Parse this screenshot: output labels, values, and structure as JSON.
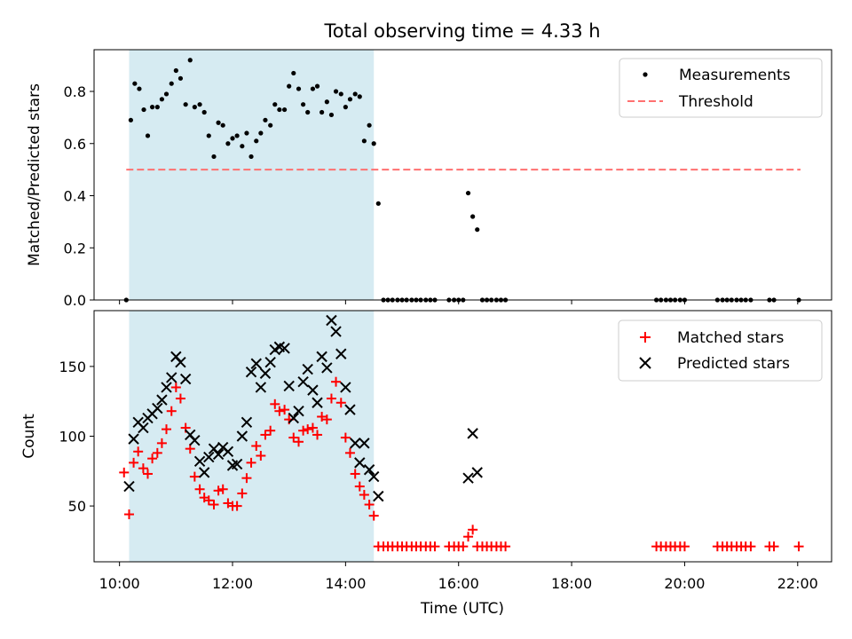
{
  "title": "Total observing time = 4.33 h",
  "x_axis": {
    "label": "Time (UTC)",
    "ticks": [
      "10:00",
      "12:00",
      "14:00",
      "16:00",
      "18:00",
      "20:00",
      "22:00"
    ],
    "tick_values": [
      10,
      12,
      14,
      16,
      18,
      20,
      22
    ],
    "range": [
      9.55,
      22.6
    ]
  },
  "colors": {
    "shade": "#add8e6",
    "threshold": "#ff7070",
    "measurements": "#000000",
    "matched": "#ff0000",
    "predicted": "#000000"
  },
  "chart_data": [
    {
      "type": "scatter",
      "ylabel": "Matched/Predicted stars",
      "ylim": [
        0,
        0.96
      ],
      "yticks": [
        "0.0",
        "0.2",
        "0.4",
        "0.6",
        "0.8"
      ],
      "ytick_values": [
        0,
        0.2,
        0.4,
        0.6,
        0.8
      ],
      "shaded_span": [
        10.17,
        14.5
      ],
      "legend": {
        "position": "upper right",
        "entries": [
          "Measurements",
          "Threshold"
        ]
      },
      "threshold": {
        "name": "Threshold",
        "y": 0.5,
        "x_range": [
          10.12,
          22.05
        ]
      },
      "series": [
        {
          "name": "Measurements",
          "points": [
            [
              10.12,
              0.0
            ],
            [
              10.2,
              0.69
            ],
            [
              10.27,
              0.83
            ],
            [
              10.35,
              0.81
            ],
            [
              10.43,
              0.73
            ],
            [
              10.5,
              0.63
            ],
            [
              10.58,
              0.74
            ],
            [
              10.67,
              0.74
            ],
            [
              10.75,
              0.77
            ],
            [
              10.83,
              0.79
            ],
            [
              10.92,
              0.83
            ],
            [
              11.0,
              0.88
            ],
            [
              11.08,
              0.85
            ],
            [
              11.17,
              0.75
            ],
            [
              11.25,
              0.92
            ],
            [
              11.33,
              0.74
            ],
            [
              11.42,
              0.75
            ],
            [
              11.5,
              0.72
            ],
            [
              11.58,
              0.63
            ],
            [
              11.67,
              0.55
            ],
            [
              11.75,
              0.68
            ],
            [
              11.83,
              0.67
            ],
            [
              11.92,
              0.6
            ],
            [
              12.0,
              0.62
            ],
            [
              12.08,
              0.63
            ],
            [
              12.17,
              0.59
            ],
            [
              12.25,
              0.64
            ],
            [
              12.33,
              0.55
            ],
            [
              12.42,
              0.61
            ],
            [
              12.5,
              0.64
            ],
            [
              12.58,
              0.69
            ],
            [
              12.67,
              0.67
            ],
            [
              12.75,
              0.75
            ],
            [
              12.83,
              0.73
            ],
            [
              12.92,
              0.73
            ],
            [
              13.0,
              0.82
            ],
            [
              13.08,
              0.87
            ],
            [
              13.17,
              0.81
            ],
            [
              13.25,
              0.75
            ],
            [
              13.33,
              0.72
            ],
            [
              13.42,
              0.81
            ],
            [
              13.5,
              0.82
            ],
            [
              13.58,
              0.72
            ],
            [
              13.67,
              0.76
            ],
            [
              13.75,
              0.71
            ],
            [
              13.83,
              0.8
            ],
            [
              13.92,
              0.79
            ],
            [
              14.0,
              0.74
            ],
            [
              14.08,
              0.77
            ],
            [
              14.17,
              0.79
            ],
            [
              14.25,
              0.78
            ],
            [
              14.33,
              0.61
            ],
            [
              14.42,
              0.67
            ],
            [
              14.5,
              0.6
            ],
            [
              14.58,
              0.37
            ],
            [
              14.67,
              0.0
            ],
            [
              14.75,
              0.0
            ],
            [
              14.83,
              0.0
            ],
            [
              14.92,
              0.0
            ],
            [
              15.0,
              0.0
            ],
            [
              15.08,
              0.0
            ],
            [
              15.17,
              0.0
            ],
            [
              15.25,
              0.0
            ],
            [
              15.33,
              0.0
            ],
            [
              15.42,
              0.0
            ],
            [
              15.5,
              0.0
            ],
            [
              15.58,
              0.0
            ],
            [
              15.83,
              0.0
            ],
            [
              15.92,
              0.0
            ],
            [
              16.0,
              0.0
            ],
            [
              16.08,
              0.0
            ],
            [
              16.17,
              0.41
            ],
            [
              16.25,
              0.32
            ],
            [
              16.33,
              0.27
            ],
            [
              16.42,
              0.0
            ],
            [
              16.5,
              0.0
            ],
            [
              16.58,
              0.0
            ],
            [
              16.67,
              0.0
            ],
            [
              16.75,
              0.0
            ],
            [
              16.83,
              0.0
            ],
            [
              19.5,
              0.0
            ],
            [
              19.58,
              0.0
            ],
            [
              19.67,
              0.0
            ],
            [
              19.75,
              0.0
            ],
            [
              19.83,
              0.0
            ],
            [
              19.92,
              0.0
            ],
            [
              20.0,
              0.0
            ],
            [
              20.58,
              0.0
            ],
            [
              20.67,
              0.0
            ],
            [
              20.75,
              0.0
            ],
            [
              20.83,
              0.0
            ],
            [
              20.92,
              0.0
            ],
            [
              21.0,
              0.0
            ],
            [
              21.08,
              0.0
            ],
            [
              21.17,
              0.0
            ],
            [
              21.5,
              0.0
            ],
            [
              21.58,
              0.0
            ],
            [
              22.02,
              0.0
            ]
          ]
        }
      ]
    },
    {
      "type": "scatter",
      "ylabel": "Count",
      "ylim": [
        10,
        190
      ],
      "yticks": [
        "50",
        "100",
        "150"
      ],
      "ytick_values": [
        50,
        100,
        150
      ],
      "shaded_span": [
        10.17,
        14.5
      ],
      "legend": {
        "position": "upper right",
        "entries": [
          "Matched stars",
          "Predicted stars"
        ]
      },
      "series": [
        {
          "name": "Matched stars",
          "marker": "plus",
          "points": [
            [
              10.08,
              74
            ],
            [
              10.17,
              44
            ],
            [
              10.25,
              81
            ],
            [
              10.33,
              89
            ],
            [
              10.42,
              77
            ],
            [
              10.5,
              73
            ],
            [
              10.58,
              84
            ],
            [
              10.67,
              88
            ],
            [
              10.75,
              95
            ],
            [
              10.83,
              105
            ],
            [
              10.92,
              118
            ],
            [
              11.0,
              135
            ],
            [
              11.08,
              127
            ],
            [
              11.17,
              106
            ],
            [
              11.25,
              91
            ],
            [
              11.33,
              71
            ],
            [
              11.42,
              62
            ],
            [
              11.5,
              56
            ],
            [
              11.58,
              54
            ],
            [
              11.67,
              51
            ],
            [
              11.75,
              61
            ],
            [
              11.83,
              62
            ],
            [
              11.92,
              52
            ],
            [
              12.0,
              50
            ],
            [
              12.08,
              50
            ],
            [
              12.17,
              59
            ],
            [
              12.25,
              70
            ],
            [
              12.33,
              81
            ],
            [
              12.42,
              93
            ],
            [
              12.5,
              86
            ],
            [
              12.58,
              101
            ],
            [
              12.67,
              104
            ],
            [
              12.75,
              123
            ],
            [
              12.83,
              118
            ],
            [
              12.92,
              119
            ],
            [
              13.0,
              112
            ],
            [
              13.08,
              99
            ],
            [
              13.17,
              96
            ],
            [
              13.25,
              104
            ],
            [
              13.33,
              105
            ],
            [
              13.42,
              106
            ],
            [
              13.5,
              101
            ],
            [
              13.58,
              114
            ],
            [
              13.67,
              112
            ],
            [
              13.75,
              127
            ],
            [
              13.83,
              139
            ],
            [
              13.92,
              124
            ],
            [
              14.0,
              99
            ],
            [
              14.08,
              88
            ],
            [
              14.17,
              73
            ],
            [
              14.25,
              64
            ],
            [
              14.33,
              58
            ],
            [
              14.42,
              51
            ],
            [
              14.5,
              43
            ],
            [
              14.58,
              21
            ],
            [
              14.67,
              21
            ],
            [
              14.75,
              21
            ],
            [
              14.83,
              21
            ],
            [
              14.92,
              21
            ],
            [
              15.0,
              21
            ],
            [
              15.08,
              21
            ],
            [
              15.17,
              21
            ],
            [
              15.25,
              21
            ],
            [
              15.33,
              21
            ],
            [
              15.42,
              21
            ],
            [
              15.5,
              21
            ],
            [
              15.58,
              21
            ],
            [
              15.83,
              21
            ],
            [
              15.92,
              21
            ],
            [
              16.0,
              21
            ],
            [
              16.08,
              21
            ],
            [
              16.17,
              28
            ],
            [
              16.25,
              33
            ],
            [
              16.33,
              21
            ],
            [
              16.42,
              21
            ],
            [
              16.5,
              21
            ],
            [
              16.58,
              21
            ],
            [
              16.67,
              21
            ],
            [
              16.75,
              21
            ],
            [
              16.83,
              21
            ],
            [
              19.5,
              21
            ],
            [
              19.58,
              21
            ],
            [
              19.67,
              21
            ],
            [
              19.75,
              21
            ],
            [
              19.83,
              21
            ],
            [
              19.92,
              21
            ],
            [
              20.0,
              21
            ],
            [
              20.58,
              21
            ],
            [
              20.67,
              21
            ],
            [
              20.75,
              21
            ],
            [
              20.83,
              21
            ],
            [
              20.92,
              21
            ],
            [
              21.0,
              21
            ],
            [
              21.08,
              21
            ],
            [
              21.17,
              21
            ],
            [
              21.5,
              21
            ],
            [
              21.58,
              21
            ],
            [
              22.02,
              21
            ]
          ]
        },
        {
          "name": "Predicted stars",
          "marker": "x",
          "points": [
            [
              10.17,
              64
            ],
            [
              10.25,
              98
            ],
            [
              10.33,
              110
            ],
            [
              10.42,
              106
            ],
            [
              10.5,
              113
            ],
            [
              10.58,
              116
            ],
            [
              10.67,
              120
            ],
            [
              10.75,
              126
            ],
            [
              10.83,
              135
            ],
            [
              10.92,
              142
            ],
            [
              11.0,
              157
            ],
            [
              11.08,
              153
            ],
            [
              11.17,
              141
            ],
            [
              11.25,
              101
            ],
            [
              11.33,
              97
            ],
            [
              11.42,
              82
            ],
            [
              11.5,
              74
            ],
            [
              11.58,
              85
            ],
            [
              11.67,
              91
            ],
            [
              11.75,
              87
            ],
            [
              11.83,
              92
            ],
            [
              11.92,
              89
            ],
            [
              12.0,
              79
            ],
            [
              12.08,
              80
            ],
            [
              12.17,
              100
            ],
            [
              12.25,
              110
            ],
            [
              12.33,
              146
            ],
            [
              12.42,
              152
            ],
            [
              12.5,
              135
            ],
            [
              12.58,
              145
            ],
            [
              12.67,
              153
            ],
            [
              12.75,
              162
            ],
            [
              12.83,
              164
            ],
            [
              12.92,
              163
            ],
            [
              13.0,
              136
            ],
            [
              13.08,
              113
            ],
            [
              13.17,
              118
            ],
            [
              13.25,
              139
            ],
            [
              13.33,
              148
            ],
            [
              13.42,
              133
            ],
            [
              13.5,
              124
            ],
            [
              13.58,
              157
            ],
            [
              13.67,
              149
            ],
            [
              13.75,
              183
            ],
            [
              13.83,
              175
            ],
            [
              13.92,
              159
            ],
            [
              14.0,
              135
            ],
            [
              14.08,
              119
            ],
            [
              14.17,
              95
            ],
            [
              14.25,
              81
            ],
            [
              14.33,
              95
            ],
            [
              14.42,
              76
            ],
            [
              14.5,
              71
            ],
            [
              14.58,
              57
            ],
            [
              16.17,
              70
            ],
            [
              16.25,
              102
            ],
            [
              16.33,
              74
            ]
          ]
        }
      ]
    }
  ]
}
